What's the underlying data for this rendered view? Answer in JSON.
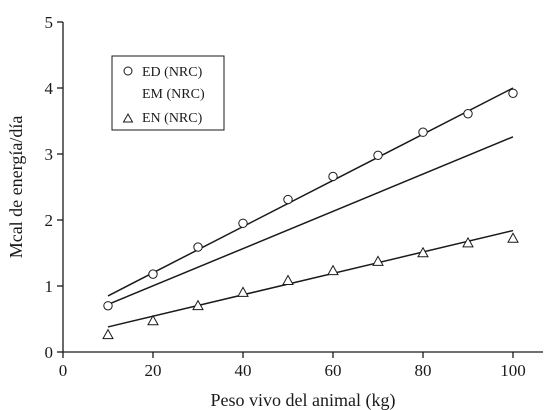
{
  "chart_data": {
    "type": "scatter",
    "xlabel": "Peso vivo del animal (kg)",
    "ylabel": "Mcal de energía/día",
    "xlim": [
      0,
      105
    ],
    "ylim": [
      0,
      5
    ],
    "xticks": [
      0,
      20,
      40,
      60,
      80,
      100
    ],
    "yticks": [
      0,
      1,
      2,
      3,
      4,
      5
    ],
    "grid": false,
    "legend_position": "top-left",
    "series": [
      {
        "name": "ED (NRC)",
        "marker": "circle",
        "x": [
          10,
          20,
          30,
          40,
          50,
          60,
          70,
          80,
          90,
          100
        ],
        "y": [
          0.7,
          1.18,
          1.59,
          1.95,
          2.31,
          2.66,
          2.98,
          3.33,
          3.61,
          3.92
        ],
        "fit": {
          "x": [
            10,
            100
          ],
          "y": [
            0.85,
            4.0
          ]
        }
      },
      {
        "name": "EM (NRC)",
        "marker": "none",
        "x": [],
        "y": [],
        "fit": {
          "x": [
            10,
            100
          ],
          "y": [
            0.72,
            3.26
          ]
        }
      },
      {
        "name": "EN (NRC)",
        "marker": "triangle",
        "x": [
          10,
          20,
          30,
          40,
          50,
          60,
          70,
          80,
          90,
          100
        ],
        "y": [
          0.26,
          0.47,
          0.7,
          0.9,
          1.08,
          1.23,
          1.37,
          1.5,
          1.65,
          1.72
        ],
        "fit": {
          "x": [
            10,
            100
          ],
          "y": [
            0.38,
            1.84
          ]
        }
      }
    ]
  }
}
